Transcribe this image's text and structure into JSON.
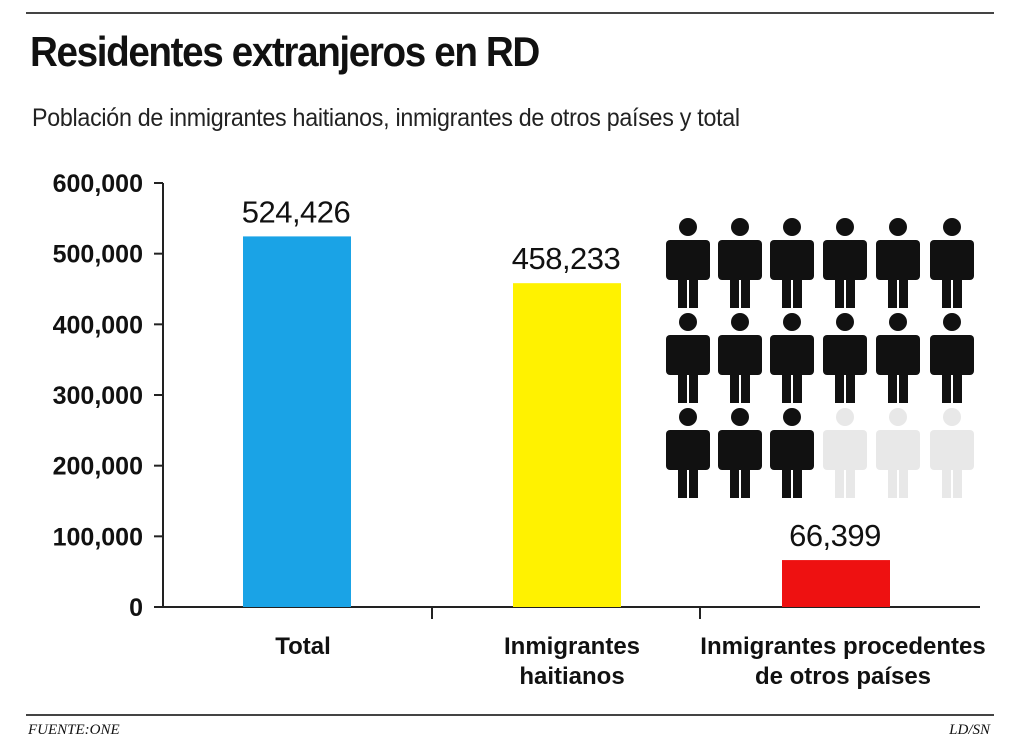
{
  "title": "Residentes extranjeros en RD",
  "subtitle": "Población de inmigrantes haitianos, inmigrantes de otros países y total",
  "footer": {
    "source": "FUENTE:ONE",
    "credit": "LD/SN"
  },
  "colors": {
    "total": "#1aa3e6",
    "haitianos": "#fff200",
    "otros": "#ee1111",
    "figure_dark": "#111111",
    "figure_light": "#e8e8e8"
  },
  "pictogram": {
    "icon": "person-icon",
    "total_figures": 18,
    "dark_figures": 15
  },
  "chart_data": {
    "type": "bar",
    "title": "Residentes extranjeros en RD",
    "subtitle": "Población de inmigrantes haitianos, inmigrantes de otros países y total",
    "xlabel": "",
    "ylabel": "",
    "ylim": [
      0,
      600000
    ],
    "yticks": [
      0,
      100000,
      200000,
      300000,
      400000,
      500000,
      600000
    ],
    "ytick_labels": [
      "0",
      "100,000",
      "200,000",
      "300,000",
      "400,000",
      "500,000",
      "600,000"
    ],
    "grid": false,
    "categories": [
      [
        "Total"
      ],
      [
        "Inmigrantes",
        "haitianos"
      ],
      [
        "Inmigrantes procedentes",
        "de otros países"
      ]
    ],
    "values": [
      524426,
      458233,
      66399
    ],
    "value_labels": [
      "524,426",
      "458,233",
      "66,399"
    ],
    "bar_colors": [
      "#1aa3e6",
      "#fff200",
      "#ee1111"
    ]
  }
}
